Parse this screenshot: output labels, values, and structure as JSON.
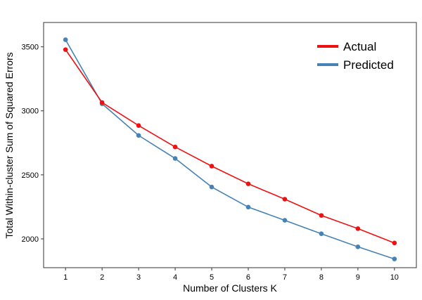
{
  "chart_data": {
    "type": "line",
    "title": "",
    "xlabel": "Number of Clusters K",
    "ylabel": "Total Within-cluster Sum of Squared Errors",
    "x": [
      1,
      2,
      3,
      4,
      5,
      6,
      7,
      8,
      9,
      10
    ],
    "xticks": [
      "1",
      "2",
      "3",
      "4",
      "5",
      "6",
      "7",
      "8",
      "9",
      "10"
    ],
    "yticks": [
      2000,
      2500,
      3000,
      3500
    ],
    "xlim": [
      0.4,
      10.6
    ],
    "ylim": [
      1775,
      3690
    ],
    "grid": false,
    "legend_position": "top-right",
    "series": [
      {
        "name": "Actual",
        "color": "#ee1111",
        "values": [
          3478,
          3065,
          2885,
          2718,
          2568,
          2430,
          2310,
          2183,
          2080,
          1968
        ]
      },
      {
        "name": "Predicted",
        "color": "#4682b4",
        "values": [
          3555,
          3055,
          2808,
          2628,
          2405,
          2248,
          2145,
          2040,
          1938,
          1843
        ]
      }
    ]
  }
}
